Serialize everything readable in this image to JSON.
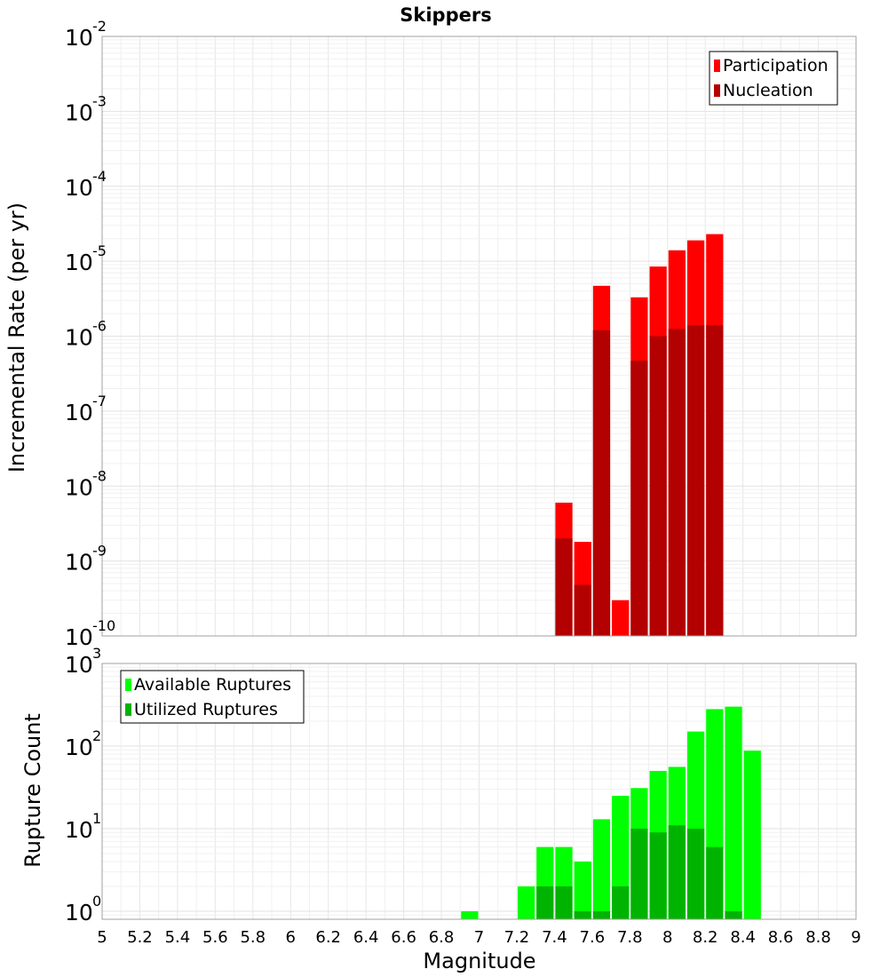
{
  "chart_data": [
    {
      "type": "bar",
      "title": "Skippers",
      "xlabel": "",
      "ylabel": "Incremental Rate (per yr)",
      "yscale": "log",
      "xlim": [
        5,
        9
      ],
      "ylim": [
        1e-10,
        0.01
      ],
      "ytick_labels": [
        {
          "base": "10",
          "exp": "-2"
        },
        {
          "base": "10",
          "exp": "-3"
        },
        {
          "base": "10",
          "exp": "-4"
        },
        {
          "base": "10",
          "exp": "-5"
        },
        {
          "base": "10",
          "exp": "-6"
        },
        {
          "base": "10",
          "exp": "-7"
        },
        {
          "base": "10",
          "exp": "-8"
        },
        {
          "base": "10",
          "exp": "-9"
        },
        {
          "base": "10",
          "exp": "-10"
        }
      ],
      "grid": true,
      "legend_position": "top-right",
      "bin_width": 0.1,
      "series": [
        {
          "name": "Participation",
          "color": "#ff0000",
          "points": [
            {
              "x": 7.45,
              "y": 6e-09
            },
            {
              "x": 7.55,
              "y": 1.8e-09
            },
            {
              "x": 7.65,
              "y": 4.7e-06
            },
            {
              "x": 7.75,
              "y": 3e-10
            },
            {
              "x": 7.85,
              "y": 3.3e-06
            },
            {
              "x": 7.95,
              "y": 8.5e-06
            },
            {
              "x": 8.05,
              "y": 1.4e-05
            },
            {
              "x": 8.15,
              "y": 1.9e-05
            },
            {
              "x": 8.25,
              "y": 2.3e-05
            }
          ]
        },
        {
          "name": "Nucleation",
          "color": "#b30000",
          "points": [
            {
              "x": 7.45,
              "y": 2e-09
            },
            {
              "x": 7.55,
              "y": 4.8e-10
            },
            {
              "x": 7.65,
              "y": 1.2e-06
            },
            {
              "x": 7.85,
              "y": 4.7e-07
            },
            {
              "x": 7.95,
              "y": 1e-06
            },
            {
              "x": 8.05,
              "y": 1.25e-06
            },
            {
              "x": 8.15,
              "y": 1.4e-06
            },
            {
              "x": 8.25,
              "y": 1.4e-06
            }
          ]
        }
      ]
    },
    {
      "type": "bar",
      "title": "",
      "xlabel": "Magnitude",
      "ylabel": "Rupture Count",
      "yscale": "log",
      "xlim": [
        5,
        9
      ],
      "ylim": [
        0.8,
        1000
      ],
      "x_tick_labels": [
        "5",
        "5.2",
        "5.4",
        "5.6",
        "5.8",
        "6",
        "6.2",
        "6.4",
        "6.6",
        "6.8",
        "7",
        "7.2",
        "7.4",
        "7.6",
        "7.8",
        "8",
        "8.2",
        "8.4",
        "8.6",
        "8.8",
        "9"
      ],
      "ytick_labels": [
        {
          "base": "10",
          "exp": "3"
        },
        {
          "base": "10",
          "exp": "2"
        },
        {
          "base": "10",
          "exp": "1"
        },
        {
          "base": "10",
          "exp": "0"
        }
      ],
      "grid": true,
      "legend_position": "top-left",
      "bin_width": 0.1,
      "series": [
        {
          "name": "Available Ruptures",
          "color": "#00ff00",
          "points": [
            {
              "x": 6.95,
              "y": 1
            },
            {
              "x": 7.25,
              "y": 2
            },
            {
              "x": 7.35,
              "y": 6
            },
            {
              "x": 7.45,
              "y": 6
            },
            {
              "x": 7.55,
              "y": 4
            },
            {
              "x": 7.65,
              "y": 13
            },
            {
              "x": 7.75,
              "y": 25
            },
            {
              "x": 7.85,
              "y": 31
            },
            {
              "x": 7.95,
              "y": 50
            },
            {
              "x": 8.05,
              "y": 56
            },
            {
              "x": 8.15,
              "y": 150
            },
            {
              "x": 8.25,
              "y": 280
            },
            {
              "x": 8.35,
              "y": 300
            },
            {
              "x": 8.45,
              "y": 88
            }
          ]
        },
        {
          "name": "Utilized Ruptures",
          "color": "#00b300",
          "points": [
            {
              "x": 7.35,
              "y": 2
            },
            {
              "x": 7.45,
              "y": 2
            },
            {
              "x": 7.55,
              "y": 1
            },
            {
              "x": 7.65,
              "y": 1
            },
            {
              "x": 7.75,
              "y": 2
            },
            {
              "x": 7.85,
              "y": 10
            },
            {
              "x": 7.95,
              "y": 9
            },
            {
              "x": 8.05,
              "y": 11
            },
            {
              "x": 8.15,
              "y": 10
            },
            {
              "x": 8.25,
              "y": 6
            },
            {
              "x": 8.35,
              "y": 1
            }
          ]
        }
      ]
    }
  ]
}
